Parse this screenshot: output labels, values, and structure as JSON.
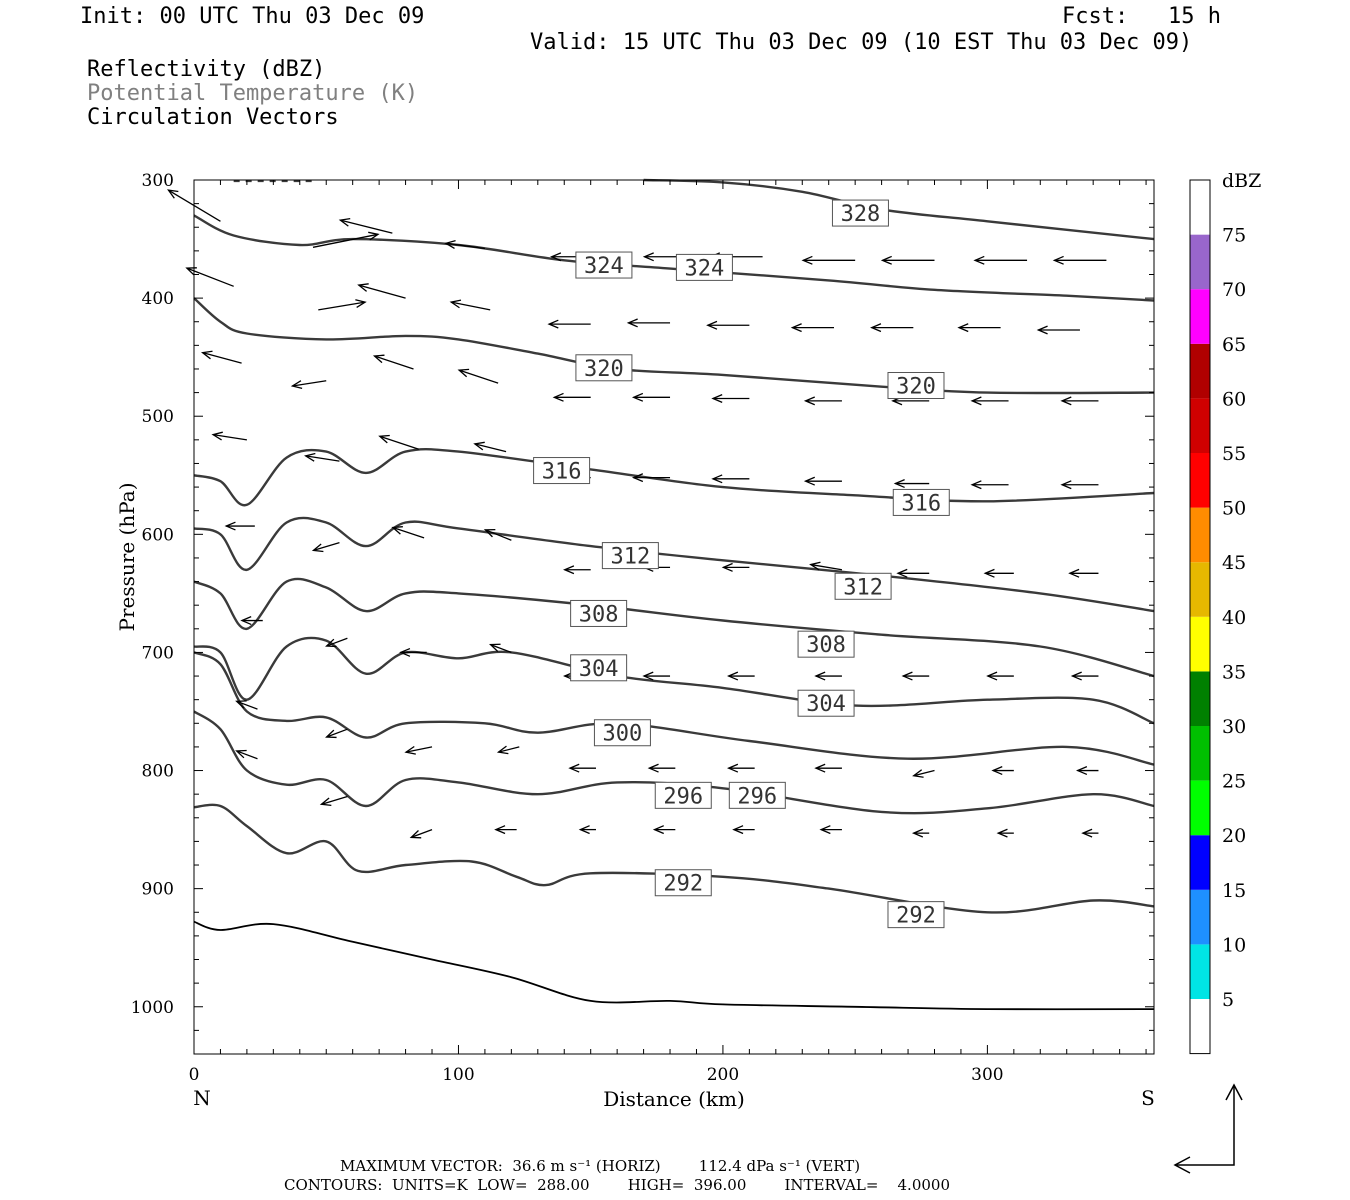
{
  "header": {
    "init": "Init: 00 UTC Thu 03 Dec 09",
    "fcst": "Fcst:   15 h",
    "valid": "Valid: 15 UTC Thu 03 Dec 09 (10 EST Thu 03 Dec 09)",
    "fields": [
      "Reflectivity (dBZ)",
      "Potential Temperature (K)",
      "Circulation Vectors"
    ]
  },
  "footer": {
    "max_vector": "MAXIMUM VECTOR:  36.6 m s⁻¹ (HORIZ)        112.4 dPa s⁻¹ (VERT)",
    "contours": "CONTOURS:  UNITS=K  LOW=  288.00        HIGH=  396.00        INTERVAL=    4.0000"
  },
  "colors": {
    "contour": "#3a3a3a",
    "frame": "#000000"
  },
  "chart_data": {
    "type": "cross-section contour",
    "title": "",
    "xlabel": "Distance (km)",
    "ylabel": "Pressure (hPa)",
    "xlim": [
      0,
      363
    ],
    "ylim": [
      1040,
      300
    ],
    "x_ticks": [
      0,
      100,
      200,
      300
    ],
    "y_ticks": [
      300,
      400,
      500,
      600,
      700,
      800,
      900,
      1000
    ],
    "x_end_labels": {
      "left": "N",
      "right": "S"
    },
    "contours": [
      {
        "value": "292",
        "points": [
          [
            0,
            831
          ],
          [
            10,
            830
          ],
          [
            20,
            847
          ],
          [
            35,
            870
          ],
          [
            50,
            860
          ],
          [
            62,
            885
          ],
          [
            80,
            880
          ],
          [
            105,
            877
          ],
          [
            122,
            890
          ],
          [
            133,
            897
          ],
          [
            150,
            887
          ],
          [
            200,
            890
          ],
          [
            240,
            900
          ],
          [
            300,
            920
          ],
          [
            340,
            910
          ],
          [
            363,
            915
          ]
        ]
      },
      {
        "value": "296",
        "points": [
          [
            0,
            750
          ],
          [
            10,
            765
          ],
          [
            20,
            800
          ],
          [
            35,
            812
          ],
          [
            50,
            808
          ],
          [
            65,
            830
          ],
          [
            80,
            808
          ],
          [
            100,
            810
          ],
          [
            130,
            820
          ],
          [
            160,
            810
          ],
          [
            200,
            815
          ],
          [
            260,
            835
          ],
          [
            300,
            832
          ],
          [
            340,
            820
          ],
          [
            363,
            830
          ]
        ]
      },
      {
        "value": "300",
        "points": [
          [
            0,
            700
          ],
          [
            10,
            710
          ],
          [
            20,
            750
          ],
          [
            35,
            758
          ],
          [
            50,
            755
          ],
          [
            65,
            772
          ],
          [
            80,
            760
          ],
          [
            110,
            760
          ],
          [
            130,
            768
          ],
          [
            160,
            760
          ],
          [
            210,
            775
          ],
          [
            270,
            790
          ],
          [
            330,
            780
          ],
          [
            363,
            795
          ]
        ]
      },
      {
        "value": "304",
        "points": [
          [
            0,
            695
          ],
          [
            10,
            700
          ],
          [
            20,
            740
          ],
          [
            35,
            695
          ],
          [
            50,
            690
          ],
          [
            65,
            718
          ],
          [
            80,
            700
          ],
          [
            100,
            705
          ],
          [
            120,
            700
          ],
          [
            160,
            720
          ],
          [
            200,
            730
          ],
          [
            250,
            745
          ],
          [
            300,
            740
          ],
          [
            340,
            740
          ],
          [
            363,
            760
          ]
        ]
      },
      {
        "value": "308",
        "points": [
          [
            0,
            640
          ],
          [
            10,
            650
          ],
          [
            20,
            680
          ],
          [
            35,
            640
          ],
          [
            50,
            645
          ],
          [
            65,
            665
          ],
          [
            80,
            650
          ],
          [
            100,
            650
          ],
          [
            150,
            660
          ],
          [
            200,
            673
          ],
          [
            260,
            685
          ],
          [
            320,
            695
          ],
          [
            363,
            720
          ]
        ]
      },
      {
        "value": "312",
        "points": [
          [
            0,
            595
          ],
          [
            10,
            600
          ],
          [
            20,
            630
          ],
          [
            35,
            590
          ],
          [
            50,
            590
          ],
          [
            65,
            610
          ],
          [
            80,
            590
          ],
          [
            100,
            595
          ],
          [
            150,
            610
          ],
          [
            200,
            622
          ],
          [
            260,
            635
          ],
          [
            320,
            650
          ],
          [
            363,
            665
          ]
        ]
      },
      {
        "value": "316",
        "points": [
          [
            0,
            550
          ],
          [
            10,
            555
          ],
          [
            20,
            575
          ],
          [
            35,
            535
          ],
          [
            50,
            530
          ],
          [
            65,
            548
          ],
          [
            80,
            530
          ],
          [
            100,
            530
          ],
          [
            150,
            545
          ],
          [
            200,
            560
          ],
          [
            250,
            567
          ],
          [
            300,
            572
          ],
          [
            363,
            565
          ]
        ]
      },
      {
        "value": "320",
        "points": [
          [
            0,
            400
          ],
          [
            10,
            420
          ],
          [
            20,
            430
          ],
          [
            50,
            435
          ],
          [
            80,
            432
          ],
          [
            100,
            435
          ],
          [
            130,
            447
          ],
          [
            160,
            460
          ],
          [
            200,
            465
          ],
          [
            260,
            475
          ],
          [
            300,
            480
          ],
          [
            363,
            480
          ]
        ]
      },
      {
        "value": "324",
        "points": [
          [
            0,
            330
          ],
          [
            15,
            347
          ],
          [
            40,
            355
          ],
          [
            60,
            350
          ],
          [
            100,
            355
          ],
          [
            140,
            368
          ],
          [
            180,
            375
          ],
          [
            240,
            385
          ],
          [
            280,
            393
          ],
          [
            330,
            398
          ],
          [
            363,
            402
          ]
        ]
      },
      {
        "value": "328",
        "points": [
          [
            170,
            300
          ],
          [
            200,
            302
          ],
          [
            230,
            310
          ],
          [
            260,
            325
          ],
          [
            300,
            335
          ],
          [
            363,
            350
          ]
        ]
      }
    ],
    "surface": [
      [
        0,
        928
      ],
      [
        10,
        935
      ],
      [
        30,
        930
      ],
      [
        60,
        945
      ],
      [
        90,
        960
      ],
      [
        120,
        975
      ],
      [
        150,
        995
      ],
      [
        180,
        995
      ],
      [
        200,
        998
      ],
      [
        250,
        1000
      ],
      [
        300,
        1002
      ],
      [
        363,
        1002
      ]
    ],
    "contour_labels": [
      {
        "text": "328",
        "x": 252,
        "p": 328
      },
      {
        "text": "324",
        "x": 155,
        "p": 372
      },
      {
        "text": "324",
        "x": 193,
        "p": 374
      },
      {
        "text": "320",
        "x": 155,
        "p": 459
      },
      {
        "text": "320",
        "x": 273,
        "p": 474
      },
      {
        "text": "316",
        "x": 139,
        "p": 546
      },
      {
        "text": "316",
        "x": 275,
        "p": 573
      },
      {
        "text": "312",
        "x": 165,
        "p": 618
      },
      {
        "text": "312",
        "x": 253,
        "p": 644
      },
      {
        "text": "308",
        "x": 153,
        "p": 667
      },
      {
        "text": "308",
        "x": 239,
        "p": 693
      },
      {
        "text": "304",
        "x": 153,
        "p": 713
      },
      {
        "text": "304",
        "x": 239,
        "p": 743
      },
      {
        "text": "300",
        "x": 162,
        "p": 768
      },
      {
        "text": "296",
        "x": 185,
        "p": 821
      },
      {
        "text": "296",
        "x": 213,
        "p": 821
      },
      {
        "text": "292",
        "x": 185,
        "p": 895
      },
      {
        "text": "292",
        "x": 273,
        "p": 922
      }
    ],
    "vectors": [
      [
        10,
        335,
        -20,
        -12
      ],
      [
        45,
        357,
        25,
        -5
      ],
      [
        75,
        345,
        -20,
        -5
      ],
      [
        110,
        358,
        -15,
        -2
      ],
      [
        150,
        365,
        -15,
        0
      ],
      [
        190,
        365,
        -20,
        0
      ],
      [
        215,
        365,
        -20,
        0
      ],
      [
        250,
        368,
        -20,
        0
      ],
      [
        280,
        368,
        -20,
        0
      ],
      [
        315,
        368,
        -20,
        0
      ],
      [
        345,
        368,
        -20,
        0
      ],
      [
        15,
        390,
        -18,
        -7
      ],
      [
        47,
        410,
        18,
        -3
      ],
      [
        80,
        400,
        -18,
        -5
      ],
      [
        112,
        410,
        -15,
        -3
      ],
      [
        150,
        422,
        -16,
        0
      ],
      [
        180,
        421,
        -16,
        0
      ],
      [
        210,
        423,
        -16,
        0
      ],
      [
        242,
        425,
        -16,
        0
      ],
      [
        272,
        425,
        -16,
        0
      ],
      [
        305,
        425,
        -16,
        0
      ],
      [
        335,
        427,
        -16,
        0
      ],
      [
        18,
        455,
        -15,
        -4
      ],
      [
        50,
        470,
        -13,
        2
      ],
      [
        83,
        460,
        -15,
        -5
      ],
      [
        115,
        472,
        -15,
        -5
      ],
      [
        150,
        484,
        -14,
        0
      ],
      [
        180,
        484,
        -14,
        0
      ],
      [
        210,
        485,
        -14,
        0
      ],
      [
        245,
        487,
        -14,
        0
      ],
      [
        278,
        487,
        -14,
        0
      ],
      [
        308,
        487,
        -14,
        0
      ],
      [
        342,
        487,
        -14,
        0
      ],
      [
        20,
        520,
        -13,
        -2
      ],
      [
        55,
        538,
        -13,
        -2
      ],
      [
        85,
        528,
        -15,
        -5
      ],
      [
        118,
        530,
        -12,
        -3
      ],
      [
        150,
        552,
        -12,
        0
      ],
      [
        180,
        552,
        -14,
        0
      ],
      [
        210,
        553,
        -14,
        0
      ],
      [
        245,
        555,
        -14,
        0
      ],
      [
        278,
        557,
        -13,
        0
      ],
      [
        308,
        558,
        -14,
        0
      ],
      [
        342,
        558,
        -14,
        0
      ],
      [
        23,
        593,
        -11,
        0
      ],
      [
        55,
        607,
        -10,
        3
      ],
      [
        87,
        603,
        -12,
        -4
      ],
      [
        120,
        605,
        -10,
        -4
      ],
      [
        150,
        630,
        -10,
        0
      ],
      [
        180,
        628,
        -10,
        0
      ],
      [
        210,
        628,
        -10,
        0
      ],
      [
        245,
        630,
        -12,
        -2
      ],
      [
        278,
        633,
        -12,
        0
      ],
      [
        310,
        633,
        -11,
        0
      ],
      [
        342,
        633,
        -11,
        0
      ],
      [
        26,
        673,
        -8,
        0
      ],
      [
        58,
        688,
        -8,
        3
      ],
      [
        88,
        700,
        -10,
        0
      ],
      [
        120,
        700,
        -8,
        -3
      ],
      [
        150,
        720,
        -10,
        0
      ],
      [
        180,
        720,
        -10,
        0
      ],
      [
        212,
        720,
        -10,
        0
      ],
      [
        245,
        720,
        -10,
        0
      ],
      [
        278,
        720,
        -10,
        0
      ],
      [
        310,
        720,
        -10,
        0
      ],
      [
        342,
        720,
        -10,
        0
      ],
      [
        24,
        748,
        -8,
        -3
      ],
      [
        58,
        765,
        -8,
        3
      ],
      [
        90,
        780,
        -10,
        2
      ],
      [
        123,
        780,
        -8,
        2
      ],
      [
        152,
        798,
        -10,
        0
      ],
      [
        182,
        798,
        -10,
        0
      ],
      [
        212,
        798,
        -10,
        0
      ],
      [
        245,
        798,
        -10,
        0
      ],
      [
        280,
        800,
        -8,
        2
      ],
      [
        310,
        800,
        -8,
        0
      ],
      [
        342,
        800,
        -8,
        0
      ],
      [
        24,
        790,
        -8,
        -3
      ],
      [
        58,
        822,
        -10,
        3
      ],
      [
        90,
        850,
        -8,
        3
      ],
      [
        122,
        850,
        -8,
        0
      ],
      [
        152,
        850,
        -6,
        0
      ],
      [
        182,
        850,
        -8,
        0
      ],
      [
        212,
        850,
        -8,
        0
      ],
      [
        245,
        850,
        -8,
        0
      ],
      [
        278,
        853,
        -6,
        0
      ],
      [
        310,
        853,
        -6,
        0
      ],
      [
        342,
        853,
        -6,
        0
      ]
    ],
    "colorbar": {
      "title": "dBZ",
      "levels": [
        "5",
        "10",
        "15",
        "20",
        "25",
        "30",
        "35",
        "40",
        "45",
        "50",
        "55",
        "60",
        "65",
        "70",
        "75"
      ],
      "colors": [
        "#ffffff",
        "#00e5e5",
        "#1e90ff",
        "#0000ff",
        "#00ff00",
        "#00c000",
        "#008000",
        "#ffff00",
        "#e6b800",
        "#ff8c00",
        "#ff0000",
        "#d00000",
        "#b00000",
        "#ff00ff",
        "#9966cc",
        "#ffffff"
      ]
    }
  }
}
